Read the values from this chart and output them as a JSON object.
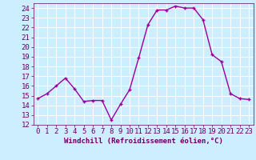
{
  "x": [
    0,
    1,
    2,
    3,
    4,
    5,
    6,
    7,
    8,
    9,
    10,
    11,
    12,
    13,
    14,
    15,
    16,
    17,
    18,
    19,
    20,
    21,
    22,
    23
  ],
  "y": [
    14.7,
    15.2,
    16.0,
    16.8,
    15.7,
    14.4,
    14.5,
    14.5,
    12.5,
    14.1,
    15.6,
    18.9,
    22.3,
    23.8,
    23.8,
    24.2,
    24.0,
    24.0,
    22.8,
    19.2,
    18.5,
    15.2,
    14.7,
    14.6
  ],
  "line_color": "#990099",
  "marker": "+",
  "xlabel": "Windchill (Refroidissement éolien,°C)",
  "xlim": [
    -0.5,
    23.5
  ],
  "ylim": [
    12,
    24.5
  ],
  "yticks": [
    12,
    13,
    14,
    15,
    16,
    17,
    18,
    19,
    20,
    21,
    22,
    23,
    24
  ],
  "xticks": [
    0,
    1,
    2,
    3,
    4,
    5,
    6,
    7,
    8,
    9,
    10,
    11,
    12,
    13,
    14,
    15,
    16,
    17,
    18,
    19,
    20,
    21,
    22,
    23
  ],
  "bg_color": "#cceeff",
  "grid_color": "#ffffff",
  "tick_color": "#660066",
  "label_color": "#660066",
  "font_size": 6.5
}
